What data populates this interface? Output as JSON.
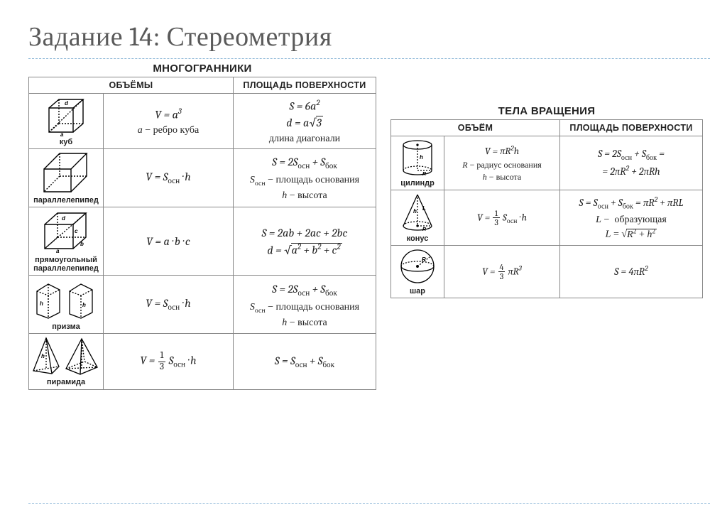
{
  "title": "Задание 14: Стереометрия",
  "left": {
    "heading": "МНОГОГРАННИКИ",
    "col1": "ОБЪЁМЫ",
    "col2": "ПЛОЩАДЬ ПОВЕРХНОСТИ",
    "rows": [
      {
        "shape": "cube",
        "label": "куб",
        "volume_html": "<i>V</i> = <i>a</i><sup class='sup'>3</sup><span class='note'><i>a</i> − ребро куба</span>",
        "surface_html": "<i>S</i> = 6<i>a</i><sup class='sup'>2</sup><br><i>d</i> = <i>a</i><span class='sqrt'><span class='radical'>√</span><span class='vinc'>3</span></span><span class='note'>длина диагонали</span>"
      },
      {
        "shape": "parallelepiped",
        "label": "параллелепипед",
        "volume_html": "<i>V</i> = <i>S</i><span class='sub'>осн</span> · <i>h</i>",
        "surface_html": "<i>S</i> = 2<i>S</i><span class='sub'>осн</span> + <i>S</i><span class='sub'>бок</span><span class='note'><i>S</i><span class='sub'>осн</span> − площадь основания</span><span class='note'><i>h</i> − высота</span>"
      },
      {
        "shape": "rect_parallelepiped",
        "label": "прямоугольный параллелепипед",
        "volume_html": "<i>V</i> = <i>a</i> · <i>b</i> · <i>c</i>",
        "surface_html": "<i>S</i> = 2<i>ab</i> + 2<i>ac</i> + 2<i>bc</i><br><i>d</i> = <span class='sqrt'><span class='radical'>√</span><span class='vinc'><i>a</i><sup class='sup'>2</sup> + <i>b</i><sup class='sup'>2</sup> + <i>c</i><sup class='sup'>2</sup></span></span>"
      },
      {
        "shape": "prism",
        "label": "призма",
        "volume_html": "<i>V</i> = <i>S</i><span class='sub'>осн</span> · <i>h</i>",
        "surface_html": "<i>S</i> = 2<i>S</i><span class='sub'>осн</span> + <i>S</i><span class='sub'>бок</span><span class='note'><i>S</i><span class='sub'>осн</span> − площадь основания</span><span class='note'><i>h</i> − высота</span>"
      },
      {
        "shape": "pyramid",
        "label": "пирамида",
        "volume_html": "<i>V</i> = <span class='frac'><span class='num'>1</span><span class='den'>3</span></span> <i>S</i><span class='sub'>осн</span> · <i>h</i>",
        "surface_html": "<i>S</i> = <i>S</i><span class='sub'>осн</span> + <i>S</i><span class='sub'>бок</span>"
      }
    ]
  },
  "right": {
    "heading": "ТЕЛА ВРАЩЕНИЯ",
    "col1": "ОБЪЁМ",
    "col2": "ПЛОЩАДЬ ПОВЕРХНОСТИ",
    "rows": [
      {
        "shape": "cylinder",
        "label": "цилиндр",
        "volume_html": "<i>V</i> = <i>πR</i><sup class='sup'>2</sup><i>h</i><span class='note' style='font-size:12px'><i>R</i> − радиус основания</span><span class='note' style='font-size:12px'><i>h</i> − высота</span>",
        "surface_html": "<i>S</i> = 2<i>S</i><span class='sub'>осн</span> + <i>S</i><span class='sub'>бок</span> =<br>= 2<i>πR</i><sup class='sup'>2</sup> + 2<i>πRh</i>"
      },
      {
        "shape": "cone",
        "label": "конус",
        "volume_html": "<i>V</i> = <span class='frac'><span class='num'>1</span><span class='den'>3</span></span> <i>S</i><span class='sub'>осн</span> · <i>h</i>",
        "surface_html": "<i>S</i> = <i>S</i><span class='sub'>осн</span> + <i>S</i><span class='sub'>бок</span> = <i>πR</i><sup class='sup'>2</sup> + <i>πRL</i><span class='note'><i>L</i> − &nbsp;образующая</span><span class='note'><i>L</i> = <span class='sqrt'><span class='radical'>√</span><span class='vinc'><i>R</i><sup class='sup'>2</sup> + <i>h</i><sup class='sup'>2</sup></span></span></span>"
      },
      {
        "shape": "sphere",
        "label": "шар",
        "volume_html": "<i>V</i> = <span class='frac'><span class='num'>4</span><span class='den'>3</span></span> <i>πR</i><sup class='sup'>3</sup>",
        "surface_html": "<i>S</i> = 4<i>πR</i><sup class='sup'>2</sup>"
      }
    ]
  },
  "style": {
    "title_color": "#5a5a5a",
    "dash_color": "#8fb8d8",
    "border_color": "#888888",
    "text_color": "#222222",
    "background": "#ffffff"
  },
  "svg_defs": {
    "cube": "<svg width='64' height='58' viewBox='0 0 64 58'><g fill='none' stroke='#000' stroke-width='1.4'><path d='M8 18 L8 52 L42 52 L42 18 Z'/><path d='M8 18 L22 6 L56 6 L42 18'/><path d='M56 6 L56 40 L42 52'/><path d='M22 6 L22 40 M22 40 L8 52 M22 40 L56 40' stroke-dasharray='2 2'/><path d='M8 52 L56 6' stroke-dasharray='2 2'/><text x='30' y='14' font-size='8' font-style='italic' fill='#000' stroke='none'>d</text><text x='24' y='58' font-size='8' font-style='italic' fill='#000' stroke='none'>a</text></g></svg>",
    "parallelepiped": "<svg width='70' height='62' viewBox='0 0 70 62'><g fill='none' stroke='#000' stroke-width='1.4'><path d='M4 26 L4 58 L42 58 L42 26 Z'/><path d='M4 26 L26 4 L64 4 L42 26'/><path d='M64 4 L64 36 L42 58'/><path d='M26 4 L26 36 M26 36 L4 58 M26 36 L64 36' stroke-dasharray='2 2'/></g></svg>",
    "rect_parallelepiped": "<svg width='72' height='64' viewBox='0 0 72 64'><g fill='none' stroke='#000' stroke-width='1.4'><path d='M6 22 L6 56 L46 56 L46 22 Z'/><path d='M6 22 L24 6 L64 6 L46 22'/><path d='M64 6 L64 40 L46 56'/><path d='M24 6 L24 40 M24 40 L6 56 M24 40 L64 40' stroke-dasharray='2 2'/><path d='M6 56 L64 6' stroke-dasharray='2 2'/><text x='22' y='62' font-size='8' font-style='italic' fill='#000' stroke='none'>a</text><text x='56' y='52' font-size='8' font-style='italic' fill='#000' stroke='none'>b</text><text x='48' y='34' font-size='8' font-style='italic' fill='#000' stroke='none'>c</text><text x='30' y='16' font-size='8' font-style='italic' fill='#000' stroke='none'>d</text></g></svg>",
    "prism": "<svg width='90' height='62' viewBox='0 0 90 62'><g fill='none' stroke='#000' stroke-width='1.3'><path d='M4 20 L4 52 L20 58 L36 50 L36 18 L20 10 Z'/><path d='M20 10 L20 58' stroke-dasharray='2 2'/><path d='M4 20 L20 26 L36 18' stroke-dasharray='2 2'/><path d='M20 26 L20 58' stroke-dasharray='2 2'/><text x='8' y='40' font-size='8' font-style='italic' fill='#000' stroke='none'>h</text><g transform='translate(46,0)'><path d='M4 20 L4 52 L20 58 L36 50 L36 18 L20 10 Z'/><path d='M4 20 L20 26 L36 18' stroke-dasharray='2 2'/><path d='M20 26 L20 58' stroke-dasharray='2 2'/><text x='22' y='42' font-size='8' font-style='italic' fill='#000' stroke='none'>h</text></g></g></svg>",
    "pyramid": "<svg width='100' height='58' viewBox='0 0 100 58'><g fill='none' stroke='#000' stroke-width='1.3'><path d='M22 4 L4 50 L30 54 L40 44 Z'/><path d='M22 4 L30 54'/><path d='M4 50 L40 44' stroke-dasharray='2 2'/><path d='M22 4 L22 48' stroke-dasharray='2 2'/><text x='15' y='32' font-size='8' font-style='italic' fill='#000' stroke='none'>h</text><g transform='translate(46,3)'><path d='M26 2 L4 44 L24 52 L48 42 Z'/><path d='M26 2 L24 52'/><path d='M4 44 L48 42' stroke-dasharray='2 2'/><path d='M4 44 L30 34 L48 42' stroke-dasharray='2 2'/><path d='M26 2 L30 34' stroke-dasharray='2 2'/><path d='M26 2 L26 44' stroke-dasharray='2 2'/></g></g></svg>",
    "cylinder": "<svg width='52' height='56' viewBox='0 0 52 56'><g fill='none' stroke='#000' stroke-width='1.3'><ellipse cx='26' cy='10' rx='20' ry='6'/><path d='M6 10 L6 46 M46 10 L46 46'/><path d='M6 46 A20 6 0 0 0 46 46'/><path d='M6 46 A20 6 0 0 1 46 46' stroke-dasharray='2 2'/><path d='M26 10 L26 46' stroke-dasharray='2 2'/><path d='M26 46 L46 46' stroke-dasharray='2 2'/><circle cx='26' cy='10' r='1' fill='#000'/><text x='29' y='30' font-size='8' font-style='italic' fill='#000' stroke='none'>h</text><text x='33' y='53' font-size='7' font-style='italic' fill='#000' stroke='none'>R</text></g></svg>",
    "cone": "<svg width='52' height='58' viewBox='0 0 52 58'><g fill='none' stroke='#000' stroke-width='1.3'><path d='M26 4 L6 48 M26 4 L46 48'/><path d='M6 48 A20 6 0 0 0 46 48'/><path d='M6 48 A20 6 0 0 1 46 48' stroke-dasharray='2 2'/><path d='M26 4 L26 48' stroke-dasharray='2 2'/><path d='M26 48 L46 48' stroke-dasharray='2 2'/><circle cx='26' cy='48' r='1' fill='#000'/><text x='33' y='26' font-size='8' font-style='italic' fill='#000' stroke='none'>L</text><text x='20' y='30' font-size='8' font-style='italic' fill='#000' stroke='none'>h</text><text x='33' y='55' font-size='7' font-style='italic' fill='#000' stroke='none'>R</text></g></svg>",
    "sphere": "<svg width='54' height='54' viewBox='0 0 54 54'><g fill='none' stroke='#000' stroke-width='1.3'><circle cx='27' cy='27' r='23'/><path d='M4 27 A23 7 0 0 0 50 27'/><path d='M4 27 A23 7 0 0 1 50 27' stroke-dasharray='2 2'/><path d='M27 27 L44 14' stroke-dasharray='2 2'/><circle cx='27' cy='27' r='1.3' fill='#000'/><text x='33' y='20' font-size='8' font-style='italic' fill='#000' stroke='none'>R</text></g></svg>"
  }
}
